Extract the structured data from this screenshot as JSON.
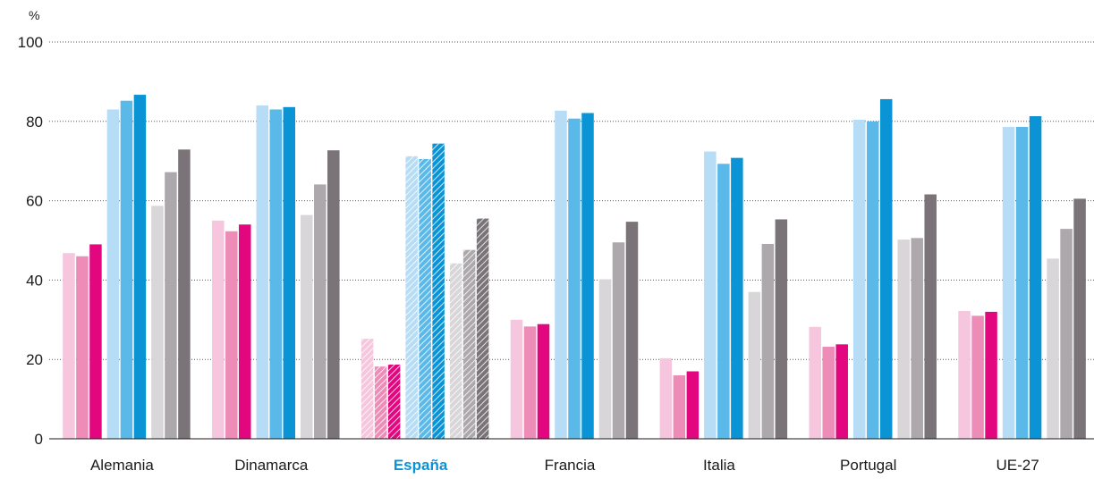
{
  "chart_data": {
    "type": "bar",
    "ylabel": "%",
    "ylim": [
      0,
      100
    ],
    "yticks": [
      0,
      20,
      40,
      60,
      80,
      100
    ],
    "grid": true,
    "highlight_category": "España",
    "categories": [
      "Alemania",
      "Dinamarca",
      "España",
      "Francia",
      "Italia",
      "Portugal",
      "UE-27"
    ],
    "series": [
      {
        "color": "#f5c6dd",
        "values": [
          46.8,
          55.0,
          25.2,
          30.0,
          20.3,
          28.2,
          32.2
        ]
      },
      {
        "color": "#ec8cb7",
        "values": [
          46.0,
          52.3,
          18.2,
          28.3,
          16.0,
          23.2,
          31.0
        ]
      },
      {
        "color": "#e2077e",
        "values": [
          49.0,
          54.0,
          18.7,
          28.9,
          17.0,
          23.8,
          32.0
        ]
      },
      {
        "color": "#b7dcf5",
        "values": [
          83.0,
          84.0,
          71.2,
          82.7,
          72.4,
          80.4,
          78.6
        ]
      },
      {
        "color": "#5ab9e9",
        "values": [
          85.2,
          83.0,
          70.5,
          80.7,
          69.3,
          80.0,
          78.6
        ]
      },
      {
        "color": "#0a94d6",
        "values": [
          86.7,
          83.6,
          74.4,
          82.1,
          70.8,
          85.6,
          81.3
        ]
      },
      {
        "color": "#d8d6d8",
        "values": [
          58.7,
          56.4,
          44.2,
          40.2,
          37.0,
          50.2,
          45.4
        ]
      },
      {
        "color": "#ada8ac",
        "values": [
          67.2,
          64.1,
          47.6,
          49.5,
          49.1,
          50.6,
          52.9
        ]
      },
      {
        "color": "#7a7378",
        "values": [
          72.9,
          72.7,
          55.5,
          54.7,
          55.3,
          61.6,
          60.5
        ]
      }
    ]
  }
}
